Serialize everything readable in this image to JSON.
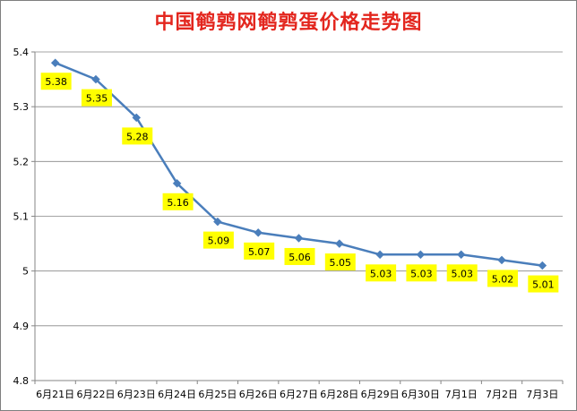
{
  "chart_data": {
    "type": "line",
    "title": "中国鹌鹑网鹌鹑蛋价格走势图",
    "xlabel": "",
    "ylabel": "",
    "categories": [
      "6月21日",
      "6月22日",
      "6月23日",
      "6月24日",
      "6月25日",
      "6月26日",
      "6月27日",
      "6月28日",
      "6月29日",
      "6月30日",
      "7月1日",
      "7月2日",
      "7月3日"
    ],
    "series": [
      {
        "values": [
          5.38,
          5.35,
          5.28,
          5.16,
          5.09,
          5.07,
          5.06,
          5.05,
          5.03,
          5.03,
          5.03,
          5.02,
          5.01
        ]
      }
    ],
    "data_labels": [
      "5.38",
      "5.35",
      "5.28",
      "5.16",
      "5.09",
      "5.07",
      "5.06",
      "5.05",
      "5.03",
      "5.03",
      "5.03",
      "5.02",
      "5.01"
    ],
    "ylim": [
      4.8,
      5.4
    ],
    "yticks": [
      4.8,
      4.9,
      5,
      5.1,
      5.2,
      5.3,
      5.4
    ],
    "ytick_labels": [
      "4.8",
      "4.9",
      "5",
      "5.1",
      "5.2",
      "5.3",
      "5.4"
    ],
    "grid": "horizontal",
    "legend": "none",
    "colors": {
      "line": "#4a7ebb",
      "marker": "#4a7ebb",
      "label_bg": "#ffff00",
      "title": "#e3261e",
      "grid": "#868686"
    }
  }
}
